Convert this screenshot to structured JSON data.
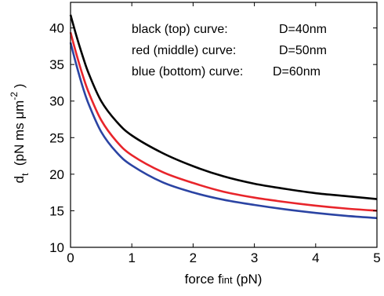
{
  "chart_data": {
    "type": "line",
    "title": "",
    "xlabel": {
      "main": "force ",
      "symbol": "f",
      "subscript": "int",
      "unit": " (pN)"
    },
    "ylabel": {
      "symbol": "d",
      "subscript": "t",
      "unit_prefix": "  (pN ms μm",
      "superscript": "-2",
      "unit_suffix": " )"
    },
    "xlim": [
      0,
      5
    ],
    "ylim": [
      10,
      43.5
    ],
    "x_ticks": [
      0,
      1,
      2,
      3,
      4,
      5
    ],
    "y_ticks": [
      10,
      15,
      20,
      25,
      30,
      35,
      40
    ],
    "x_tick_labels": [
      "0",
      "1",
      "2",
      "3",
      "4",
      "5"
    ],
    "y_tick_labels": [
      "10",
      "15",
      "20",
      "25",
      "30",
      "35",
      "40"
    ],
    "grid": false,
    "legend_placement": "top-right",
    "legend": [
      {
        "label": "black (top) curve:",
        "value": "D=40nm"
      },
      {
        "label": "red (middle) curve:",
        "value": "D=50nm"
      },
      {
        "label": "blue (bottom) curve:",
        "value": "D=60nm"
      }
    ],
    "series": [
      {
        "color": "#000000",
        "x": [
          0,
          0.1,
          0.2,
          0.3,
          0.5,
          0.75,
          1,
          1.5,
          2,
          2.5,
          3,
          3.5,
          4,
          4.5,
          5
        ],
        "y": [
          41.8,
          38.8,
          36.1,
          33.7,
          30.0,
          27.2,
          25.3,
          22.9,
          21.1,
          19.7,
          18.7,
          18.0,
          17.4,
          17.0,
          16.6
        ]
      },
      {
        "color": "#e8252b",
        "x": [
          0,
          0.1,
          0.2,
          0.3,
          0.5,
          0.75,
          1,
          1.5,
          2,
          2.5,
          3,
          3.5,
          4,
          4.5,
          5
        ],
        "y": [
          39.4,
          36.3,
          33.5,
          31.1,
          27.4,
          24.5,
          22.6,
          20.3,
          18.8,
          17.6,
          16.8,
          16.2,
          15.7,
          15.3,
          15.0
        ]
      },
      {
        "color": "#2b44a3",
        "x": [
          0,
          0.1,
          0.2,
          0.3,
          0.5,
          0.75,
          1,
          1.5,
          2,
          2.5,
          3,
          3.5,
          4,
          4.5,
          5
        ],
        "y": [
          38.0,
          34.8,
          31.9,
          29.5,
          25.8,
          23.0,
          21.2,
          18.9,
          17.5,
          16.5,
          15.8,
          15.2,
          14.7,
          14.3,
          14.0
        ]
      }
    ]
  }
}
